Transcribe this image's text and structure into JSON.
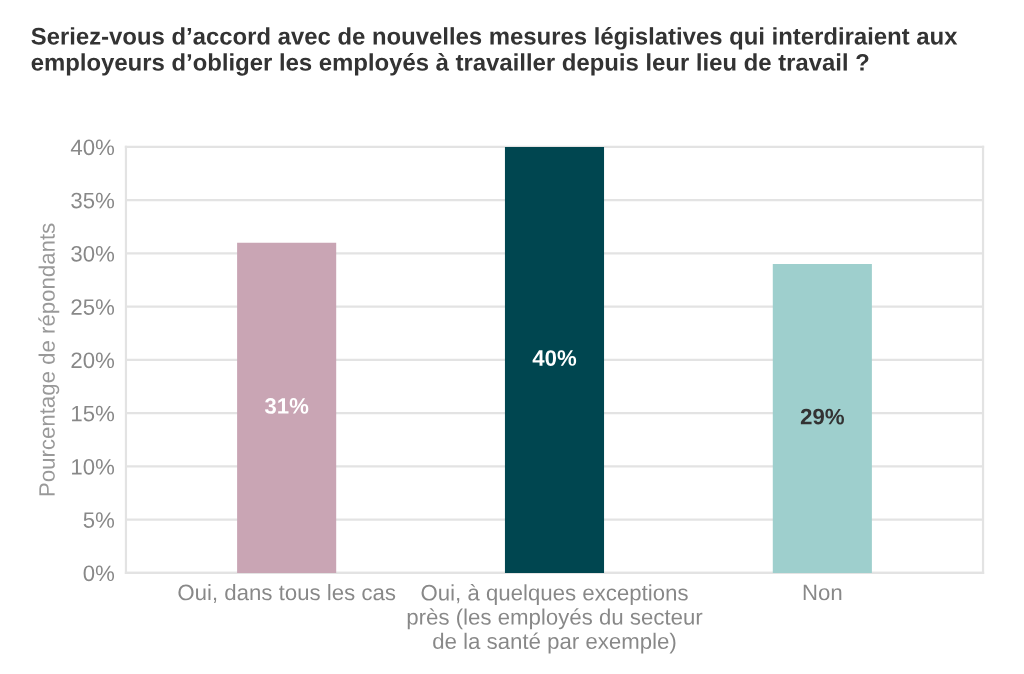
{
  "chart_data": {
    "type": "bar",
    "title": "Seriez-vous d’accord avec de nouvelles mesures législatives qui interdiraient aux employeurs d’obliger les employés à travailler depuis leur lieu de travail ?",
    "ylabel": "Pourcentage de répondants",
    "categories": [
      "Oui, dans tous les cas",
      "Oui, à quelques exceptions\nprès (les employés du secteur\nde la santé par exemple)",
      "Non"
    ],
    "values": [
      31,
      40,
      29
    ],
    "colors": [
      "#c9a5b4",
      "#004650",
      "#9ecfcd"
    ],
    "value_labels": [
      "31%",
      "40%",
      "29%"
    ],
    "ylim": [
      0,
      40
    ],
    "yticks": [
      {
        "value": 0,
        "label": "0%"
      },
      {
        "value": 5,
        "label": "5%"
      },
      {
        "value": 10,
        "label": "10%"
      },
      {
        "value": 15,
        "label": "15%"
      },
      {
        "value": 20,
        "label": "20%"
      },
      {
        "value": 25,
        "label": "25%"
      },
      {
        "value": 30,
        "label": "30%"
      },
      {
        "value": 35,
        "label": "35%"
      },
      {
        "value": 40,
        "label": "40%"
      }
    ],
    "grid": "y"
  }
}
